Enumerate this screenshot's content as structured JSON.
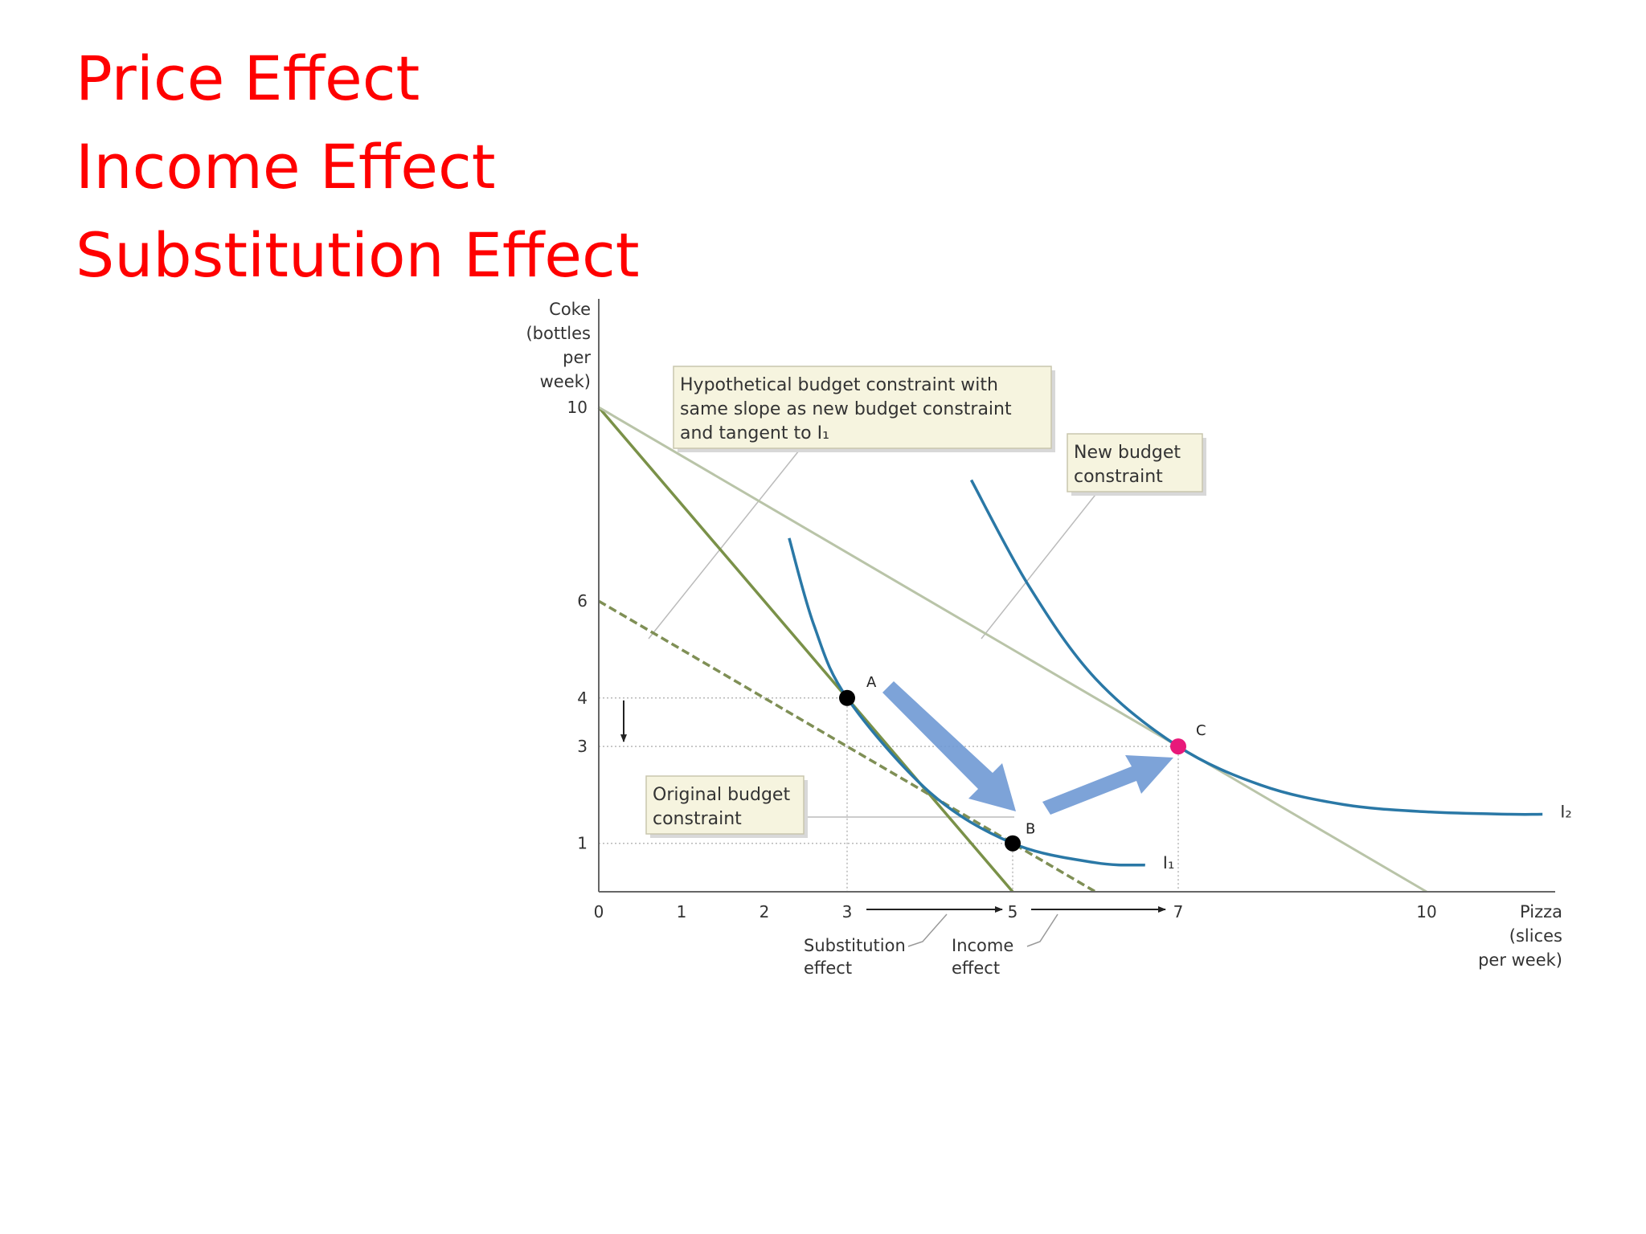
{
  "slide": {
    "title_lines": [
      "Price Effect",
      "Income Effect",
      "Substitution Effect"
    ]
  },
  "chart_data": {
    "type": "line",
    "title": "",
    "xlabel_lines": [
      "Pizza",
      "(slices",
      "per week)"
    ],
    "ylabel_lines": [
      "Coke",
      "(bottles",
      "per",
      "week)"
    ],
    "xlim": [
      0,
      11.7
    ],
    "ylim": [
      0,
      10.8
    ],
    "x_ticks": [
      {
        "value": 0,
        "label": "0"
      },
      {
        "value": 1,
        "label": "1"
      },
      {
        "value": 2,
        "label": "2"
      },
      {
        "value": 3,
        "label": "3"
      },
      {
        "value": 5,
        "label": "5"
      },
      {
        "value": 7,
        "label": "7",
        "color": "#c2185b"
      },
      {
        "value": 10,
        "label": "10"
      }
    ],
    "y_ticks": [
      {
        "value": 1,
        "label": "1"
      },
      {
        "value": 3,
        "label": "3",
        "color": "#c2185b"
      },
      {
        "value": 4,
        "label": "4"
      },
      {
        "value": 6,
        "label": "6"
      },
      {
        "value": 10,
        "label": "10"
      }
    ],
    "budget_lines": [
      {
        "key": "original",
        "points": [
          [
            0,
            10
          ],
          [
            5,
            0
          ]
        ],
        "color": "#7a9148",
        "style": "solid"
      },
      {
        "key": "new",
        "points": [
          [
            0,
            10
          ],
          [
            10,
            0
          ]
        ],
        "color": "#b9c4a8",
        "style": "solid"
      },
      {
        "key": "hypothetical",
        "points": [
          [
            0,
            6
          ],
          [
            6,
            0
          ]
        ],
        "color": "#7f8f55",
        "style": "dashed"
      }
    ],
    "indifference_curves": [
      {
        "label": "I₁",
        "color": "#2a78a6",
        "points": [
          [
            2.3,
            7.3
          ],
          [
            2.6,
            5.5
          ],
          [
            3,
            4
          ],
          [
            4,
            2.05
          ],
          [
            5,
            1
          ],
          [
            6,
            0.6
          ],
          [
            6.6,
            0.55
          ]
        ]
      },
      {
        "label": "I₂",
        "color": "#2a78a6",
        "points": [
          [
            4.5,
            8.5
          ],
          [
            5.2,
            6.3
          ],
          [
            6,
            4.4
          ],
          [
            7,
            3
          ],
          [
            8,
            2.2
          ],
          [
            9,
            1.8
          ],
          [
            10,
            1.65
          ],
          [
            11,
            1.6
          ],
          [
            11.4,
            1.6
          ]
        ]
      }
    ],
    "points": [
      {
        "label": "A",
        "x": 3,
        "y": 4,
        "color": "#000000"
      },
      {
        "label": "B",
        "x": 5,
        "y": 1,
        "color": "#000000"
      },
      {
        "label": "C",
        "x": 7,
        "y": 3,
        "color": "#e8197a"
      }
    ],
    "guides": [
      {
        "x": 3,
        "y": 4
      },
      {
        "x": 5,
        "y": 1
      },
      {
        "x": 7,
        "y": 3
      }
    ],
    "callouts": {
      "hypothetical": [
        "Hypothetical budget constraint with",
        "same slope as new budget constraint",
        "and tangent to I₁"
      ],
      "new": [
        "New budget",
        "constraint"
      ],
      "original": [
        "Original budget",
        "constraint"
      ]
    },
    "effects": {
      "substitution": [
        "Substitution",
        "effect"
      ],
      "income": [
        "Income",
        "effect"
      ]
    }
  }
}
